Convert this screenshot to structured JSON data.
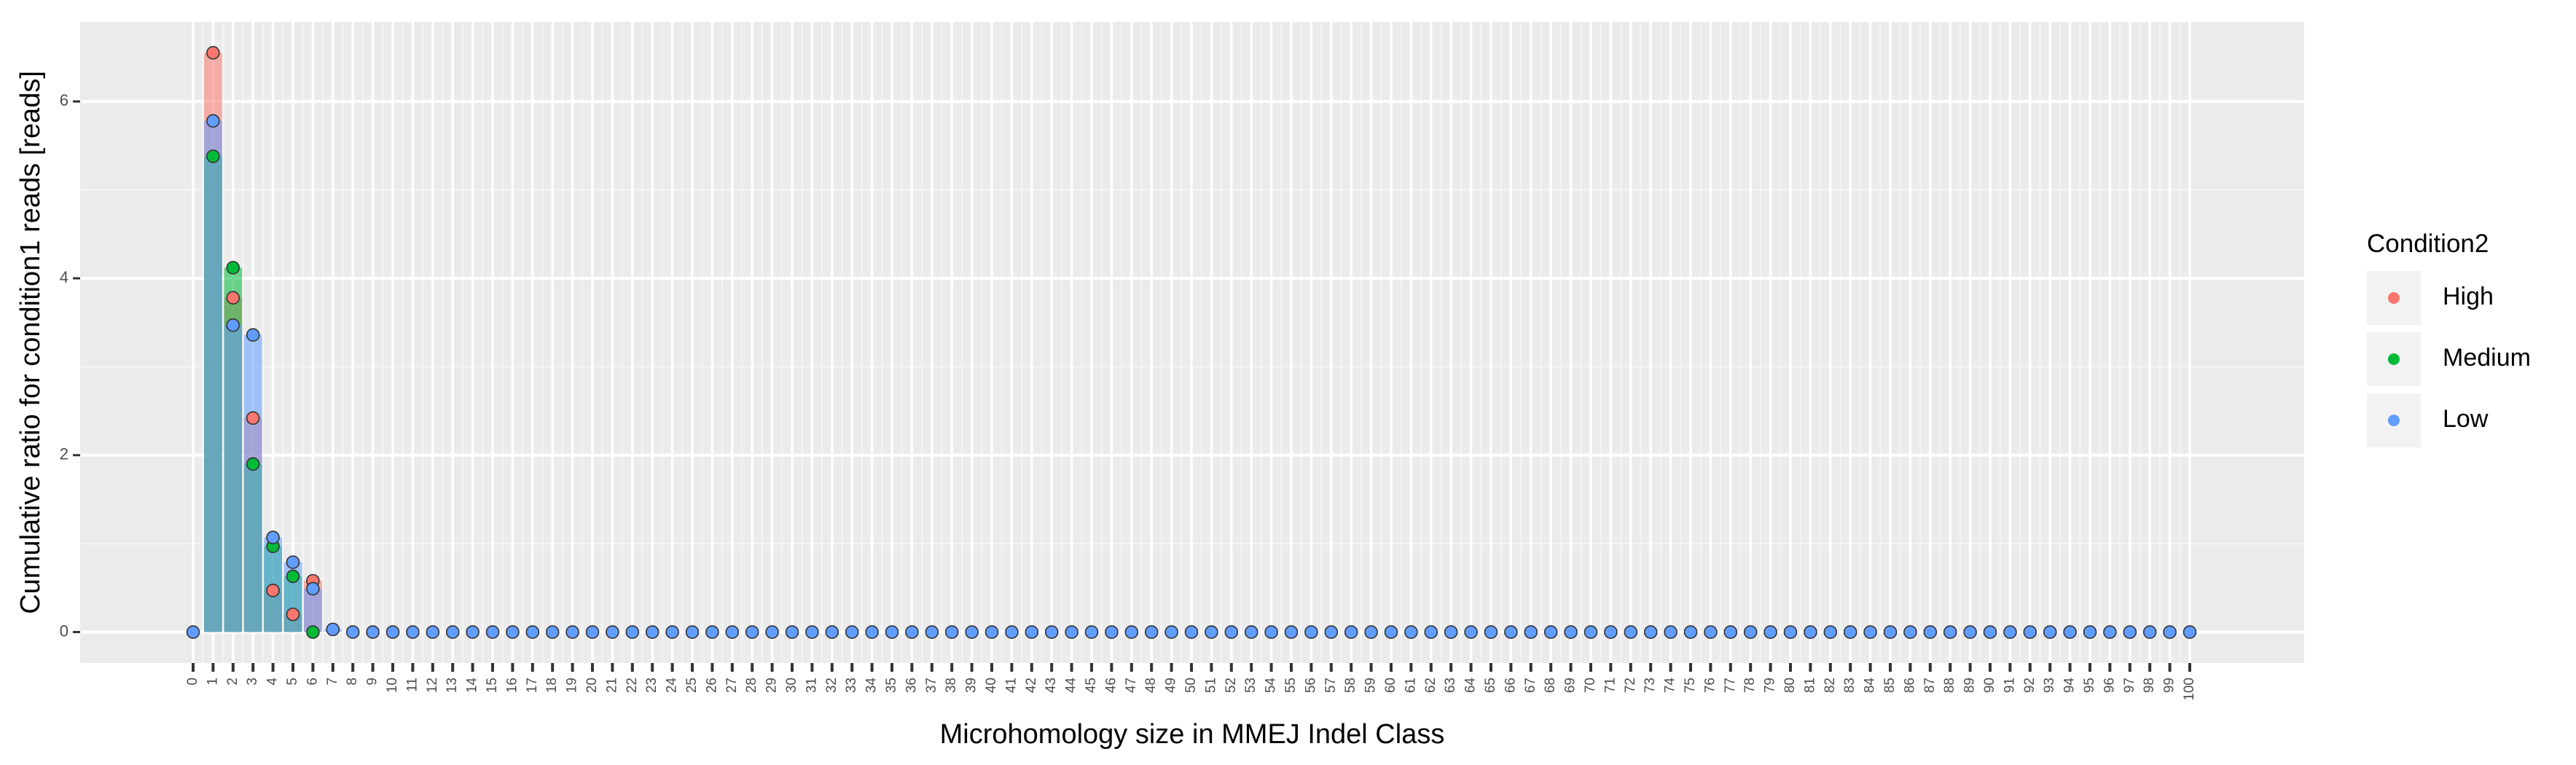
{
  "chart_data": {
    "type": "bar",
    "title": "",
    "xlabel": "Microhomology size in MMEJ Indel Class",
    "ylabel": "Cumulative ratio for condition1 reads [reads]",
    "x_categories": [
      "0",
      "1",
      "2",
      "3",
      "4",
      "5",
      "6",
      "7",
      "8",
      "9",
      "10",
      "11",
      "12",
      "13",
      "14",
      "15",
      "16",
      "17",
      "18",
      "19",
      "20",
      "21",
      "22",
      "23",
      "24",
      "25",
      "26",
      "27",
      "28",
      "29",
      "30",
      "31",
      "32",
      "33",
      "34",
      "35",
      "36",
      "37",
      "38",
      "39",
      "40",
      "41",
      "42",
      "43",
      "44",
      "45",
      "46",
      "47",
      "48",
      "49",
      "50",
      "51",
      "52",
      "53",
      "54",
      "55",
      "56",
      "57",
      "58",
      "59",
      "60",
      "61",
      "62",
      "63",
      "64",
      "65",
      "66",
      "67",
      "68",
      "69",
      "70",
      "71",
      "72",
      "73",
      "74",
      "75",
      "76",
      "77",
      "78",
      "79",
      "80",
      "81",
      "82",
      "83",
      "84",
      "85",
      "86",
      "87",
      "88",
      "89",
      "90",
      "91",
      "92",
      "93",
      "94",
      "95",
      "96",
      "97",
      "98",
      "99",
      "100"
    ],
    "y_ticks": [
      0,
      2,
      4,
      6
    ],
    "ylim": [
      -0.35,
      6.9
    ],
    "grid": true,
    "legend": {
      "title": "Condition2",
      "position": "right",
      "entries": [
        {
          "name": "High",
          "color": "#F8766D"
        },
        {
          "name": "Medium",
          "color": "#00BA38"
        },
        {
          "name": "Low",
          "color": "#619CFF"
        }
      ]
    },
    "series": [
      {
        "name": "High",
        "color": "#F8766D",
        "points": [
          [
            1,
            6.55
          ],
          [
            2,
            3.78
          ],
          [
            3,
            2.42
          ],
          [
            4,
            0.47
          ],
          [
            5,
            0.2
          ],
          [
            6,
            0.58
          ]
        ]
      },
      {
        "name": "Medium",
        "color": "#00BA38",
        "points": [
          [
            1,
            5.38
          ],
          [
            2,
            4.12
          ],
          [
            3,
            1.9
          ],
          [
            4,
            0.97
          ],
          [
            5,
            0.63
          ],
          [
            6,
            0.0
          ]
        ]
      },
      {
        "name": "Low",
        "color": "#619CFF",
        "points": [
          [
            0,
            0.0
          ],
          [
            1,
            5.78
          ],
          [
            2,
            3.47
          ],
          [
            3,
            3.36
          ],
          [
            4,
            1.07
          ],
          [
            5,
            0.79
          ],
          [
            6,
            0.49
          ],
          [
            7,
            0.03
          ]
        ]
      }
    ],
    "zero_points_from_8_to_100": true
  },
  "legend_title": "Condition2"
}
